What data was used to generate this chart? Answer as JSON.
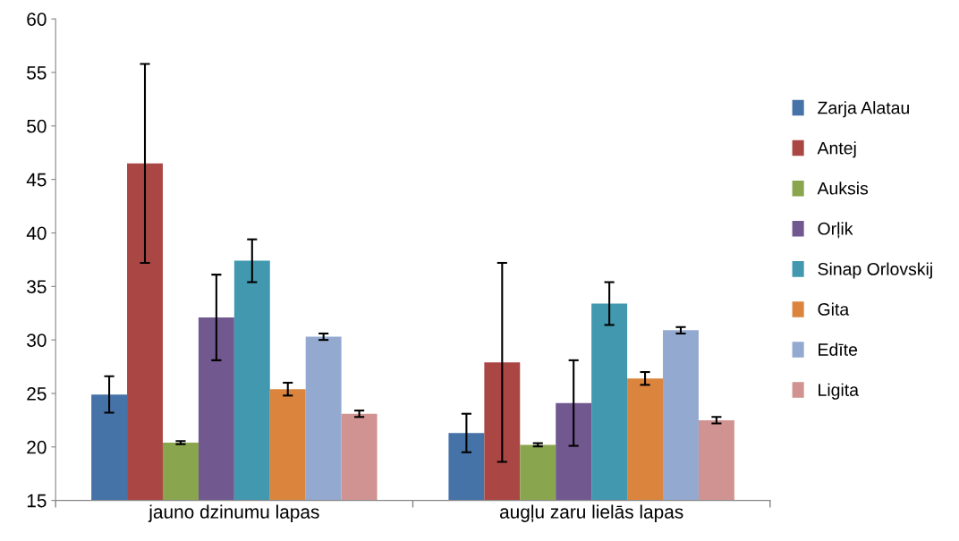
{
  "chart_data": {
    "type": "bar",
    "categories": [
      "jauno dzinumu lapas",
      "augļu zaru lielās lapas"
    ],
    "series": [
      {
        "name": "Zarja Alatau",
        "color": "#4572a7",
        "values": [
          24.9,
          21.3
        ],
        "errors": [
          1.7,
          1.8
        ]
      },
      {
        "name": "Antej",
        "color": "#aa4643",
        "values": [
          46.5,
          27.9
        ],
        "errors": [
          9.3,
          9.3
        ]
      },
      {
        "name": "Auksis",
        "color": "#89a54e",
        "values": [
          20.4,
          20.2
        ],
        "errors": [
          0.15,
          0.15
        ]
      },
      {
        "name": "Orļik",
        "color": "#71588f",
        "values": [
          32.1,
          24.1
        ],
        "errors": [
          4,
          4
        ]
      },
      {
        "name": "Sinap Orlovskij",
        "color": "#4198af",
        "values": [
          37.4,
          33.4
        ],
        "errors": [
          2,
          2
        ]
      },
      {
        "name": "Gita",
        "color": "#db843d",
        "values": [
          25.4,
          26.4
        ],
        "errors": [
          0.6,
          0.6
        ]
      },
      {
        "name": "Edīte",
        "color": "#93a9cf",
        "values": [
          30.3,
          30.9
        ],
        "errors": [
          0.3,
          0.3
        ]
      },
      {
        "name": "Ligita",
        "color": "#d19392",
        "values": [
          23.1,
          22.5
        ],
        "errors": [
          0.3,
          0.3
        ]
      }
    ],
    "ylim": [
      15,
      60
    ],
    "yticks": [
      15,
      20,
      25,
      30,
      35,
      40,
      45,
      50,
      55,
      60
    ],
    "grid": false,
    "legend": "right"
  }
}
